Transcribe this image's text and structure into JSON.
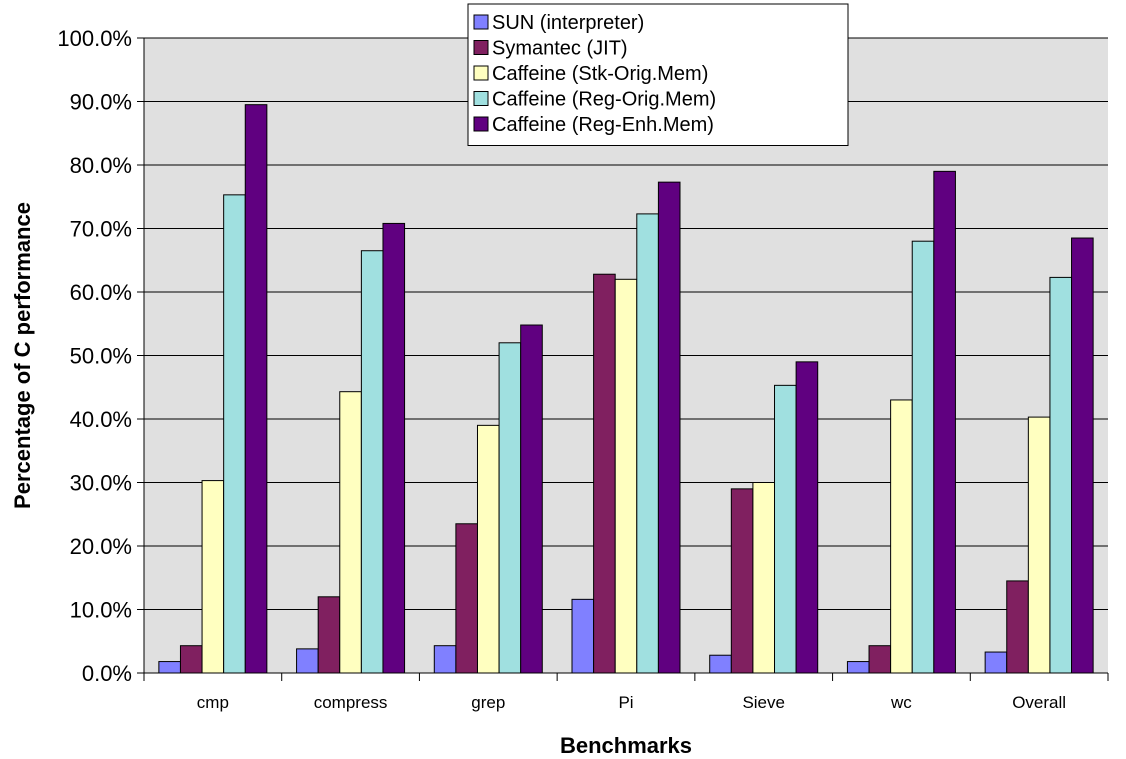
{
  "chart_data": {
    "type": "bar",
    "xlabel": "Benchmarks",
    "ylabel": "Percentage of C performance",
    "ylim": [
      0,
      100
    ],
    "y_ticks": [
      "0.0%",
      "10.0%",
      "20.0%",
      "30.0%",
      "40.0%",
      "50.0%",
      "60.0%",
      "70.0%",
      "80.0%",
      "90.0%",
      "100.0%"
    ],
    "grid": "horizontal",
    "plot_background": "#e0e0e0",
    "legend_position": "top-center",
    "categories": [
      "cmp",
      "compress",
      "grep",
      "Pi",
      "Sieve",
      "wc",
      "Overall"
    ],
    "series": [
      {
        "name": "SUN (interpreter)",
        "color": "#8080ff",
        "values": [
          1.8,
          3.8,
          4.3,
          11.6,
          2.8,
          1.8,
          3.3
        ]
      },
      {
        "name": "Symantec (JIT)",
        "color": "#802060",
        "values": [
          4.3,
          12.0,
          23.5,
          62.8,
          29.0,
          4.3,
          14.5
        ]
      },
      {
        "name": "Caffeine (Stk-Orig.Mem)",
        "color": "#ffffc0",
        "values": [
          30.3,
          44.3,
          39.0,
          62.0,
          30.0,
          43.0,
          40.3
        ]
      },
      {
        "name": "Caffeine (Reg-Orig.Mem)",
        "color": "#a0e0e0",
        "values": [
          75.3,
          66.5,
          52.0,
          72.3,
          45.3,
          68.0,
          62.3
        ]
      },
      {
        "name": "Caffeine (Reg-Enh.Mem)",
        "color": "#600080",
        "values": [
          89.5,
          70.8,
          54.8,
          77.3,
          49.0,
          79.0,
          68.5
        ]
      }
    ]
  }
}
